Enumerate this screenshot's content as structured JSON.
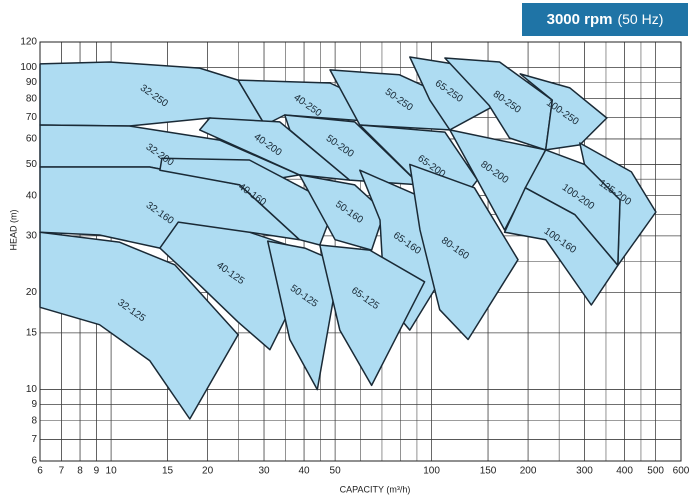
{
  "chart_data": {
    "type": "region",
    "title": "3000 rpm",
    "subtitle": "(50 Hz)",
    "xlabel": "CAPACITY (m³/h)",
    "ylabel": "HEAD (m)",
    "xscale": "log",
    "yscale": "log",
    "grid": true,
    "minor_grid": true,
    "color": "#aedcf2",
    "xlim": [
      6,
      600
    ],
    "ylim": [
      6,
      120
    ],
    "xticks": [
      6,
      7,
      8,
      9,
      10,
      15,
      20,
      30,
      40,
      50,
      100,
      150,
      200,
      300,
      400,
      500,
      600
    ],
    "yticks": [
      6,
      7,
      8,
      9,
      10,
      15,
      20,
      30,
      40,
      50,
      60,
      70,
      80,
      90,
      100,
      120
    ],
    "regions": [
      {
        "name": "32-250",
        "x": [
          6,
          9.9,
          18.9,
          24.9,
          30.2,
          20.3,
          11.4,
          6
        ],
        "y": [
          102.6,
          104,
          99.6,
          91.4,
          66.3,
          69.7,
          65.8,
          66.3
        ]
      },
      {
        "name": "40-250",
        "x": [
          24.9,
          48.2,
          92,
          34.8,
          30.2
        ],
        "y": [
          91.4,
          89.5,
          66.3,
          71.2,
          66.3
        ]
      },
      {
        "name": "50-250",
        "x": [
          48.2,
          79.4,
          118,
          114,
          59.7
        ],
        "y": [
          98.3,
          94.9,
          79.2,
          64,
          66.3
        ]
      },
      {
        "name": "65-250",
        "x": [
          85.5,
          122,
          158,
          114,
          98.7
        ],
        "y": [
          107.8,
          101.9,
          76.4,
          64,
          79.2
        ]
      },
      {
        "name": "80-250",
        "x": [
          110,
          163,
          238,
          227,
          175,
          151
        ],
        "y": [
          107,
          104,
          79.2,
          55.5,
          60.4,
          76.4
        ]
      },
      {
        "name": "100-250",
        "x": [
          189,
          270,
          352,
          290,
          227,
          238
        ],
        "y": [
          95.5,
          86.4,
          69.7,
          57.5,
          55.5,
          79.2
        ]
      },
      {
        "name": "32-200",
        "x": [
          6,
          11.4,
          21.8,
          38.7,
          25.2,
          13.2,
          6
        ],
        "y": [
          66.3,
          65.8,
          59.5,
          46.4,
          43.2,
          49.1,
          49.1
        ]
      },
      {
        "name": "40-200",
        "x": [
          20.3,
          33.6,
          55.5,
          38.7,
          18.9
        ],
        "y": [
          69.7,
          67.8,
          44.7,
          46.4,
          64
        ]
      },
      {
        "name": "50-200",
        "x": [
          34.8,
          57.6,
          92,
          55.5,
          36.1
        ],
        "y": [
          71.2,
          67.8,
          43.2,
          44.7,
          64
        ]
      },
      {
        "name": "65-200",
        "x": [
          59.7,
          110,
          139,
          118,
          92
        ],
        "y": [
          66.3,
          63,
          44.7,
          36.1,
          43.2
        ]
      },
      {
        "name": "80-200",
        "x": [
          114,
          227,
          169,
          139
        ],
        "y": [
          64,
          55.5,
          31.3,
          44.7
        ]
      },
      {
        "name": "125-200",
        "x": [
          290,
          420,
          501,
          381,
          387,
          300
        ],
        "y": [
          58.3,
          47.4,
          35.6,
          24.3,
          38.8,
          50
        ]
      },
      {
        "name": "100-200",
        "x": [
          227,
          300,
          387,
          381,
          280,
          196
        ],
        "y": [
          55.5,
          50,
          38.8,
          24.3,
          34.9,
          42.3
        ]
      },
      {
        "name": "100-160",
        "x": [
          196,
          280,
          381,
          315,
          227,
          169
        ],
        "y": [
          42.3,
          34.9,
          24.3,
          18.3,
          29.2,
          30.8
        ]
      },
      {
        "name": "32-160",
        "x": [
          6,
          13.2,
          25.2,
          38.7,
          27,
          14.2,
          9.2,
          6
        ],
        "y": [
          49.1,
          49.1,
          43.2,
          29.2,
          30.8,
          27.5,
          30.2,
          30.8
        ]
      },
      {
        "name": "40-160",
        "x": [
          14.4,
          27,
          50,
          44.8,
          38.7,
          25.2,
          14.2
        ],
        "y": [
          52.3,
          51.6,
          37.4,
          28.1,
          29.2,
          43.2,
          48
        ]
      },
      {
        "name": "50-160",
        "x": [
          38.7,
          57.6,
          71.3,
          65,
          50
        ],
        "y": [
          46.4,
          43.2,
          35.6,
          27.1,
          29.2
        ]
      },
      {
        "name": "65-160",
        "x": [
          59.7,
          106,
          130,
          85.5,
          71.3,
          69
        ],
        "y": [
          48,
          37.4,
          30.2,
          15.3,
          19,
          33.6
        ]
      },
      {
        "name": "80-160",
        "x": [
          85.5,
          136,
          186,
          130,
          106,
          92
        ],
        "y": [
          50,
          42.3,
          25.3,
          14.3,
          17.7,
          31.3
        ]
      },
      {
        "name": "32-125",
        "x": [
          6,
          10.6,
          15.8,
          24.9,
          17.6,
          13.2,
          9.2,
          6
        ],
        "y": [
          30.8,
          28.7,
          24.4,
          14.8,
          8.1,
          12.3,
          15.9,
          18
        ]
      },
      {
        "name": "40-125",
        "x": [
          14.2,
          16.2,
          27,
          44,
          31.3,
          24.9,
          18.9
        ],
        "y": [
          27.5,
          33.1,
          30.8,
          26.2,
          13.3,
          16.2,
          21.1
        ]
      },
      {
        "name": "50-125",
        "x": [
          30.8,
          40.2,
          51.7,
          44,
          36.1
        ],
        "y": [
          28.9,
          27.5,
          24.7,
          10,
          14.3
        ]
      },
      {
        "name": "65-125",
        "x": [
          44.8,
          64.1,
          95.1,
          65,
          51.7
        ],
        "y": [
          28.1,
          27.1,
          21.6,
          10.3,
          15.3
        ]
      }
    ]
  }
}
